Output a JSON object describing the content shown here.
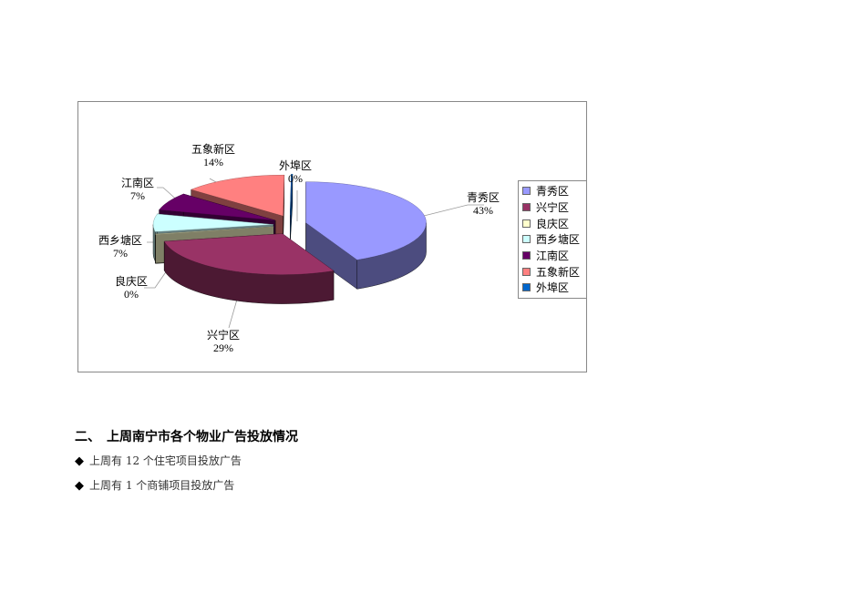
{
  "chart_data": {
    "type": "pie",
    "style": "3d-exploded",
    "categories": [
      "青秀区",
      "兴宁区",
      "良庆区",
      "西乡塘区",
      "江南区",
      "五象新区",
      "外埠区"
    ],
    "values": [
      43,
      29,
      0,
      7,
      7,
      14,
      0
    ],
    "labels": [
      "43%",
      "29%",
      "0%",
      "7%",
      "7%",
      "14%",
      "0%"
    ],
    "colors": [
      "#9999ff",
      "#993366",
      "#ffffcc",
      "#ccffff",
      "#660066",
      "#ff8080",
      "#0066cc"
    ],
    "legend": "right"
  },
  "section": {
    "title": "二、　上周南宁市各个物业广告投放情况",
    "bullets": [
      "上周有 12 个住宅项目投放广告",
      "上周有 1 个商铺项目投放广告"
    ],
    "bullet_icon": "diamond"
  }
}
